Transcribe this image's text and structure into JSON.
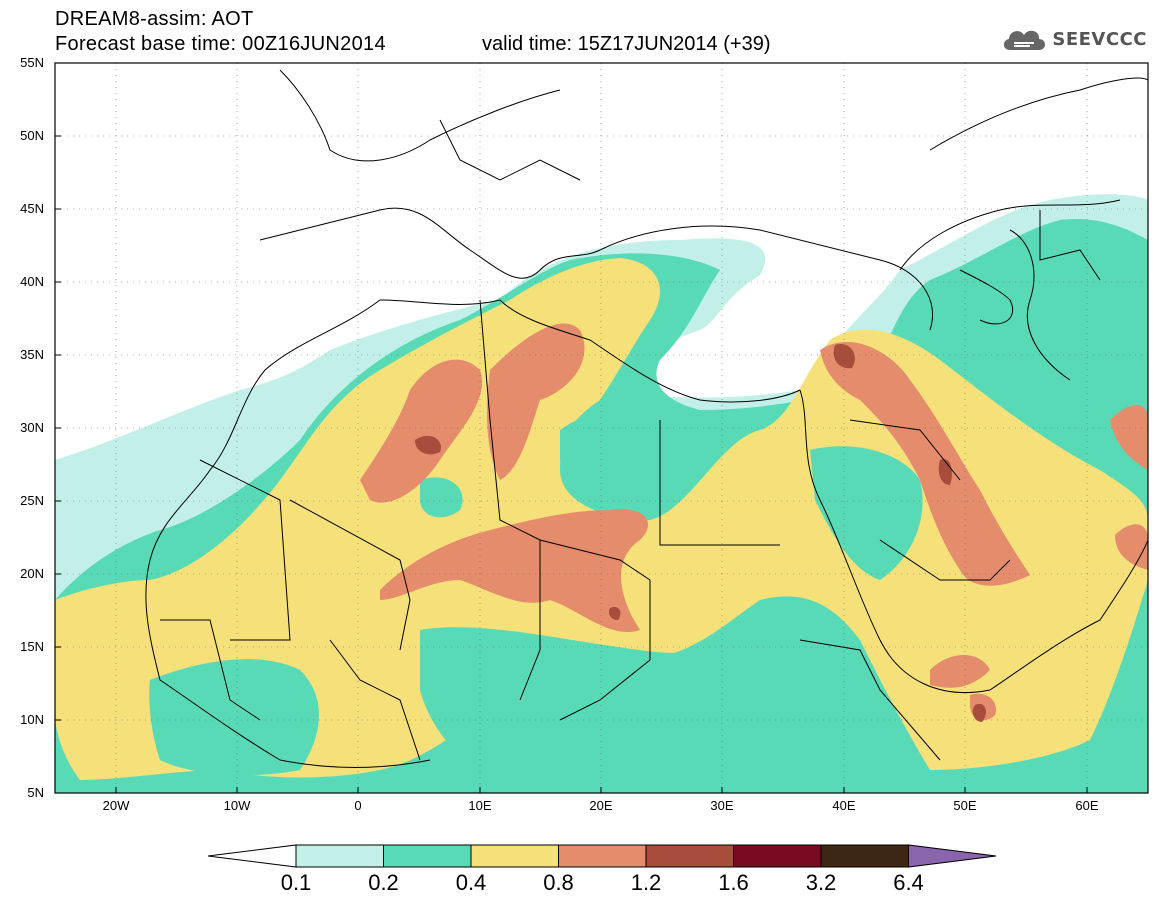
{
  "header": {
    "title_line1": "DREAM8-assim: AOT",
    "title_line2": "Forecast base time: 00Z16JUN2014",
    "valid_time": "valid time: 15Z17JUN2014 (+39)",
    "logo_text": "SEEVCCC",
    "logo_icon": "cloud-icon"
  },
  "map": {
    "lat_labels": [
      "55N",
      "50N",
      "45N",
      "40N",
      "35N",
      "30N",
      "25N",
      "20N",
      "15N",
      "10N",
      "5N"
    ],
    "lon_labels": [
      "20W",
      "10W",
      "0",
      "10E",
      "20E",
      "30E",
      "40E",
      "50E",
      "60E"
    ],
    "extent": {
      "lon_min": -25,
      "lon_max": 65,
      "lat_min": 5,
      "lat_max": 55
    }
  },
  "colorbar": {
    "levels": [
      "0.1",
      "0.2",
      "0.4",
      "0.8",
      "1.2",
      "1.6",
      "3.2",
      "6.4"
    ],
    "colors": [
      "#ffffff",
      "#c2f0e8",
      "#58dab6",
      "#f5e07a",
      "#e48c6c",
      "#a84c3c",
      "#7a0a22",
      "#3e2614",
      "#8a64ac"
    ]
  }
}
